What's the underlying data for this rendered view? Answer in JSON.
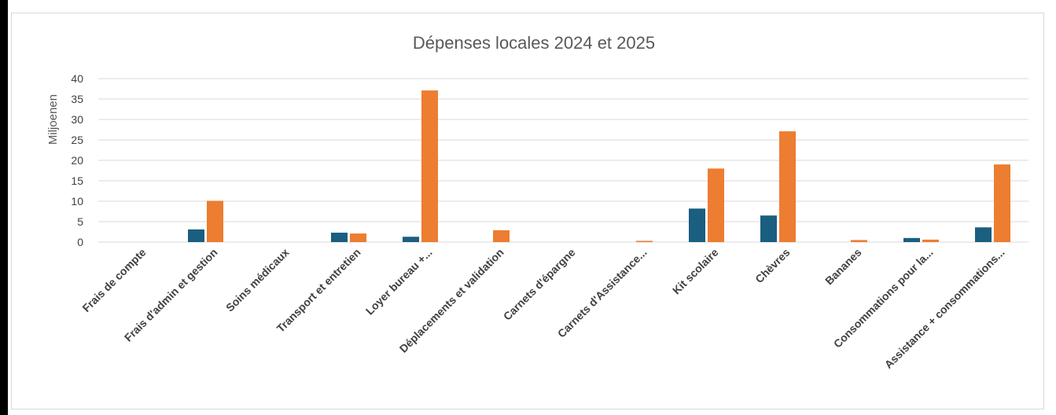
{
  "chart_data": {
    "type": "bar",
    "title": "Dépenses locales 2024 et 2025",
    "xlabel": "",
    "ylabel": "Miljoenen",
    "ylim": [
      0,
      40
    ],
    "yticks": [
      0,
      5,
      10,
      15,
      20,
      25,
      30,
      35,
      40
    ],
    "grid": true,
    "categories": [
      "Frais de compte",
      "Frais d'admin et gestion",
      "Soins médicaux",
      "Transport et entretien",
      "Loyer bureau +...",
      "Déplacements et validation",
      "Carnets d'épargne",
      "Carnets d'Assistance...",
      "Kit scolaire",
      "Chèvres",
      "Bananes",
      "Consommations pour la...",
      "Assistance + consommations..."
    ],
    "series": [
      {
        "color": "#1a5e80",
        "values": [
          0,
          3.1,
          0,
          2.3,
          1.3,
          0,
          0,
          0,
          8.2,
          6.5,
          0,
          1.0,
          3.6
        ]
      },
      {
        "color": "#ed7d31",
        "values": [
          0,
          10.1,
          0,
          2.1,
          37.1,
          2.9,
          0,
          0.3,
          18.0,
          27.1,
          0.5,
          0.6,
          19.0
        ]
      }
    ]
  }
}
